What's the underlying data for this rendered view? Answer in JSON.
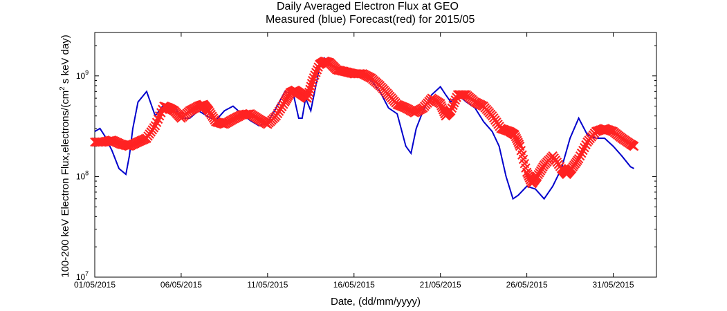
{
  "chart_data": {
    "type": "line",
    "title": "Daily Averaged Electron Flux at GEO",
    "subtitle": "Measured (blue) Forecast(red) for 2015/05",
    "xlabel": "Date, (dd/mm/yyyy)",
    "ylabel_parts": [
      "100-200 keV Electron Flux,electrons/(cm",
      "2",
      " s keV day)"
    ],
    "y_scale": "log",
    "ylim": [
      10000000,
      2700000000
    ],
    "xlim": [
      1,
      33.5
    ],
    "grid": false,
    "x_ticks": [
      {
        "day": 1,
        "label": "01/05/2015"
      },
      {
        "day": 6,
        "label": "06/05/2015"
      },
      {
        "day": 11,
        "label": "11/05/2015"
      },
      {
        "day": 16,
        "label": "16/05/2015"
      },
      {
        "day": 21,
        "label": "21/05/2015"
      },
      {
        "day": 26,
        "label": "26/05/2015"
      },
      {
        "day": 31,
        "label": "31/05/2015"
      }
    ],
    "y_ticks": [
      {
        "value": 10000000,
        "base": "10",
        "exp": "7"
      },
      {
        "value": 100000000,
        "base": "10",
        "exp": "8"
      },
      {
        "value": 1000000000,
        "base": "10",
        "exp": "9"
      }
    ],
    "series": [
      {
        "label": "Measured",
        "color": "#0000cc",
        "marker": "line",
        "x": [
          1,
          1.3,
          1.6,
          2,
          2.4,
          2.8,
          3.0,
          3.2,
          3.5,
          4.0,
          4.5,
          5.0,
          5.3,
          5.6,
          6.0,
          6.5,
          7.0,
          7.5,
          8.0,
          8.5,
          9.0,
          9.5,
          10.0,
          10.5,
          11.0,
          11.5,
          12.0,
          12.5,
          12.8,
          13.0,
          13.2,
          13.5,
          14.0,
          14.3,
          14.6,
          15.0,
          15.5,
          16.0,
          16.5,
          17.0,
          17.5,
          18.0,
          18.5,
          19.0,
          19.3,
          19.6,
          20.0,
          20.5,
          21.0,
          21.3,
          21.6,
          22.0,
          22.5,
          23.0,
          23.5,
          24.0,
          24.4,
          24.8,
          25.2,
          25.5,
          26.0,
          26.5,
          27.0,
          27.5,
          28.0,
          28.5,
          29.0,
          29.5,
          30.0,
          30.5,
          31.0,
          31.5,
          32.0,
          32.2
        ],
        "y": [
          280000000,
          300000000,
          250000000,
          180000000,
          120000000,
          105000000,
          160000000,
          300000000,
          550000000,
          700000000,
          400000000,
          520000000,
          480000000,
          500000000,
          380000000,
          380000000,
          450000000,
          400000000,
          360000000,
          450000000,
          500000000,
          420000000,
          360000000,
          320000000,
          340000000,
          480000000,
          700000000,
          650000000,
          380000000,
          380000000,
          600000000,
          450000000,
          1200000000,
          1500000000,
          1300000000,
          1200000000,
          1100000000,
          1150000000,
          1000000000,
          900000000,
          700000000,
          480000000,
          420000000,
          200000000,
          170000000,
          300000000,
          450000000,
          650000000,
          780000000,
          650000000,
          550000000,
          650000000,
          550000000,
          480000000,
          350000000,
          280000000,
          200000000,
          100000000,
          60000000,
          65000000,
          80000000,
          75000000,
          60000000,
          80000000,
          120000000,
          240000000,
          380000000,
          260000000,
          240000000,
          240000000,
          200000000,
          160000000,
          125000000,
          120000000
        ]
      },
      {
        "label": "Forecast",
        "color": "#ff2222",
        "marker": "x",
        "x": [
          1,
          1.5,
          2,
          2.5,
          3,
          3.5,
          4.0,
          4.5,
          5.0,
          5.3,
          5.6,
          6.0,
          6.5,
          7.0,
          7.3,
          7.6,
          8.0,
          8.5,
          9.0,
          9.5,
          10.0,
          10.5,
          11.0,
          11.5,
          12.0,
          12.3,
          12.6,
          13.0,
          13.3,
          13.6,
          14.0,
          14.3,
          14.6,
          15.0,
          15.5,
          16.0,
          16.5,
          17.0,
          17.5,
          18.0,
          18.5,
          19.0,
          19.5,
          20.0,
          20.5,
          21.0,
          21.3,
          21.6,
          22.0,
          22.5,
          23.0,
          23.5,
          24.0,
          24.5,
          25.0,
          25.3,
          25.6,
          26.0,
          26.3,
          26.6,
          27.0,
          27.5,
          28.0,
          28.3,
          28.6,
          29.0,
          29.5,
          30.0,
          30.5,
          31.0,
          31.5,
          32.0,
          32.2
        ],
        "y": [
          220000000,
          220000000,
          230000000,
          210000000,
          200000000,
          220000000,
          240000000,
          320000000,
          500000000,
          480000000,
          450000000,
          380000000,
          450000000,
          500000000,
          520000000,
          450000000,
          350000000,
          330000000,
          370000000,
          410000000,
          420000000,
          370000000,
          330000000,
          400000000,
          550000000,
          680000000,
          720000000,
          650000000,
          600000000,
          900000000,
          1300000000,
          1400000000,
          1350000000,
          1150000000,
          1100000000,
          1050000000,
          1050000000,
          950000000,
          800000000,
          650000000,
          520000000,
          480000000,
          430000000,
          480000000,
          600000000,
          530000000,
          400000000,
          450000000,
          650000000,
          650000000,
          550000000,
          500000000,
          400000000,
          300000000,
          280000000,
          260000000,
          200000000,
          110000000,
          85000000,
          100000000,
          130000000,
          160000000,
          120000000,
          105000000,
          120000000,
          150000000,
          220000000,
          280000000,
          300000000,
          280000000,
          240000000,
          210000000,
          200000000
        ]
      }
    ]
  }
}
